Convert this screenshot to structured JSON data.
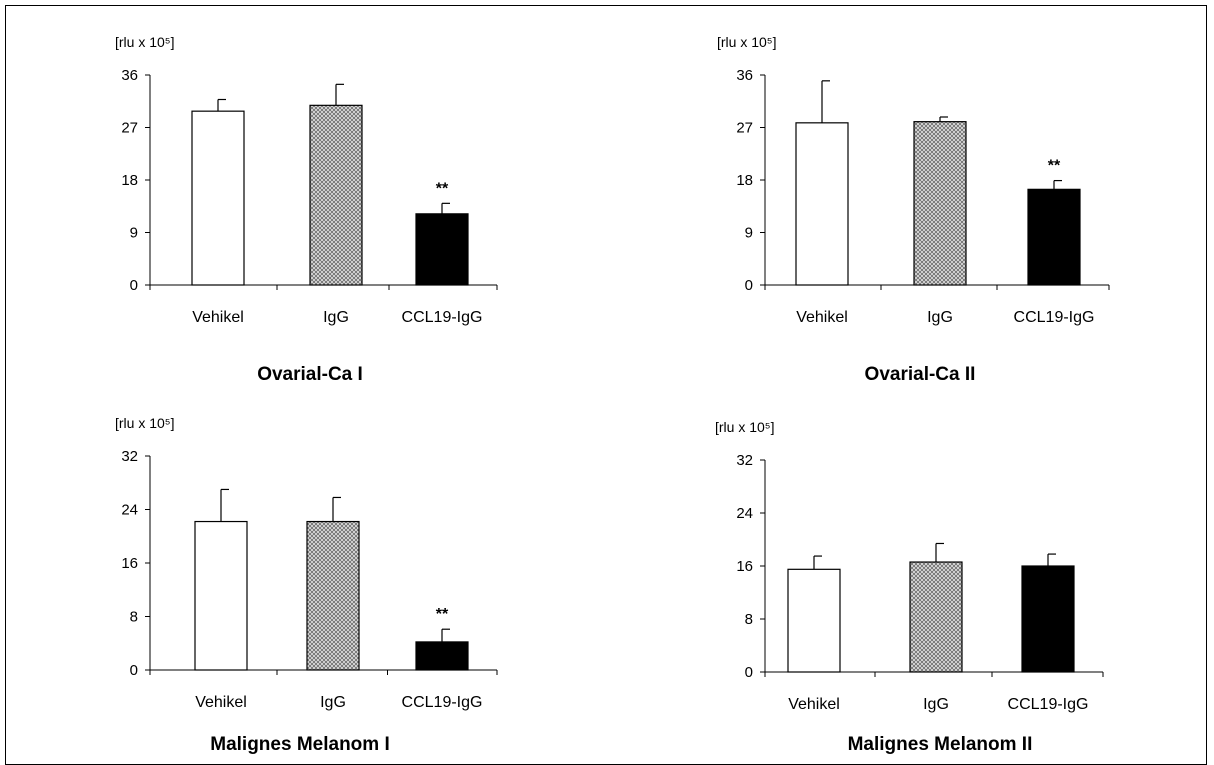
{
  "chart_data": [
    {
      "type": "bar",
      "title": "Ovarial-Ca I",
      "unit_label": "[rlu x 10⁵]",
      "categories": [
        "Vehikel",
        "IgG",
        "CCL19-IgG"
      ],
      "values": [
        29.8,
        30.8,
        12.2
      ],
      "errors": [
        2.0,
        3.6,
        1.8
      ],
      "annotations": [
        "",
        "",
        "**"
      ],
      "fills": [
        "white",
        "hatched",
        "black"
      ],
      "ylim": [
        0,
        36
      ],
      "yticks": [
        0,
        9,
        18,
        27,
        36
      ]
    },
    {
      "type": "bar",
      "title": "Ovarial-Ca II",
      "unit_label": "[rlu x 10⁵]",
      "categories": [
        "Vehikel",
        "IgG",
        "CCL19-IgG"
      ],
      "values": [
        27.8,
        28.0,
        16.4
      ],
      "errors": [
        7.2,
        0.8,
        1.5
      ],
      "annotations": [
        "",
        "",
        "**"
      ],
      "fills": [
        "white",
        "hatched",
        "black"
      ],
      "ylim": [
        0,
        36
      ],
      "yticks": [
        0,
        9,
        18,
        27,
        36
      ]
    },
    {
      "type": "bar",
      "title": "Malignes Melanom I",
      "unit_label": "[rlu x 10⁵]",
      "categories": [
        "Vehikel",
        "IgG",
        "CCL19-IgG"
      ],
      "values": [
        22.2,
        22.2,
        4.2
      ],
      "errors": [
        4.8,
        3.6,
        1.9
      ],
      "annotations": [
        "",
        "",
        "**"
      ],
      "fills": [
        "white",
        "hatched",
        "black"
      ],
      "ylim": [
        0,
        32
      ],
      "yticks": [
        0,
        8,
        16,
        24,
        32
      ]
    },
    {
      "type": "bar",
      "title": "Malignes Melanom II",
      "unit_label": "[rlu x 10⁵]",
      "categories": [
        "Vehikel",
        "IgG",
        "CCL19-IgG"
      ],
      "values": [
        15.5,
        16.6,
        16.0
      ],
      "errors": [
        2.0,
        2.8,
        1.8
      ],
      "annotations": [
        "",
        "",
        ""
      ],
      "fills": [
        "white",
        "hatched",
        "black"
      ],
      "ylim": [
        0,
        32
      ],
      "yticks": [
        0,
        8,
        16,
        24,
        32
      ]
    }
  ]
}
